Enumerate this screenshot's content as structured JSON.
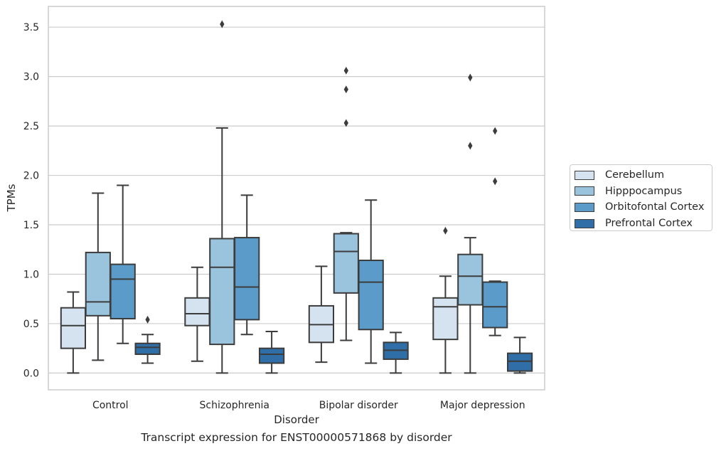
{
  "chart_data": {
    "type": "box",
    "xlabel": "Disorder",
    "ylabel": "TPMs",
    "ylim": [
      -0.17,
      3.71
    ],
    "yticks": [
      "0.0",
      "0.5",
      "1.0",
      "1.5",
      "2.0",
      "2.5",
      "3.0",
      "3.5"
    ],
    "grid": "horizontal",
    "legend_position": "right",
    "categories": [
      "Control",
      "Schizophrenia",
      "Bipolar disorder",
      "Major depression"
    ],
    "series": [
      {
        "name": "Cerebellum",
        "color": "#d5e2f0",
        "boxes": [
          {
            "whislo": 0.0,
            "q1": 0.25,
            "med": 0.48,
            "q3": 0.66,
            "whishi": 0.82,
            "fliers": []
          },
          {
            "whislo": 0.12,
            "q1": 0.48,
            "med": 0.6,
            "q3": 0.76,
            "whishi": 1.07,
            "fliers": []
          },
          {
            "whislo": 0.11,
            "q1": 0.31,
            "med": 0.49,
            "q3": 0.68,
            "whishi": 1.08,
            "fliers": []
          },
          {
            "whislo": 0.0,
            "q1": 0.34,
            "med": 0.67,
            "q3": 0.76,
            "whishi": 0.98,
            "fliers": [
              1.44
            ]
          }
        ]
      },
      {
        "name": "Hipppocampus",
        "color": "#9ac4dd",
        "boxes": [
          {
            "whislo": 0.13,
            "q1": 0.58,
            "med": 0.72,
            "q3": 1.22,
            "whishi": 1.82,
            "fliers": []
          },
          {
            "whislo": 0.0,
            "q1": 0.29,
            "med": 1.07,
            "q3": 1.36,
            "whishi": 2.48,
            "fliers": [
              3.53
            ]
          },
          {
            "whislo": 0.33,
            "q1": 0.81,
            "med": 1.23,
            "q3": 1.41,
            "whishi": 1.42,
            "fliers": [
              2.53,
              2.87,
              3.06
            ]
          },
          {
            "whislo": 0.0,
            "q1": 0.69,
            "med": 0.98,
            "q3": 1.2,
            "whishi": 1.37,
            "fliers": [
              2.3,
              2.99
            ]
          }
        ]
      },
      {
        "name": "Orbitofontal Cortex",
        "color": "#5a9bc9",
        "boxes": [
          {
            "whislo": 0.3,
            "q1": 0.55,
            "med": 0.95,
            "q3": 1.1,
            "whishi": 1.9,
            "fliers": []
          },
          {
            "whislo": 0.39,
            "q1": 0.54,
            "med": 0.87,
            "q3": 1.37,
            "whishi": 1.8,
            "fliers": []
          },
          {
            "whislo": 0.1,
            "q1": 0.44,
            "med": 0.92,
            "q3": 1.14,
            "whishi": 1.75,
            "fliers": []
          },
          {
            "whislo": 0.38,
            "q1": 0.46,
            "med": 0.67,
            "q3": 0.92,
            "whishi": 0.93,
            "fliers": [
              1.94,
              2.45
            ]
          }
        ]
      },
      {
        "name": "Prefrontal Cortex",
        "color": "#2f6ea6",
        "boxes": [
          {
            "whislo": 0.1,
            "q1": 0.19,
            "med": 0.26,
            "q3": 0.3,
            "whishi": 0.39,
            "fliers": [
              0.54
            ]
          },
          {
            "whislo": 0.0,
            "q1": 0.1,
            "med": 0.19,
            "q3": 0.25,
            "whishi": 0.42,
            "fliers": []
          },
          {
            "whislo": 0.0,
            "q1": 0.14,
            "med": 0.23,
            "q3": 0.31,
            "whishi": 0.41,
            "fliers": []
          },
          {
            "whislo": 0.0,
            "q1": 0.02,
            "med": 0.12,
            "q3": 0.2,
            "whishi": 0.36,
            "fliers": []
          }
        ]
      }
    ],
    "caption": "Transcript expression for ENST00000571868 by disorder"
  }
}
